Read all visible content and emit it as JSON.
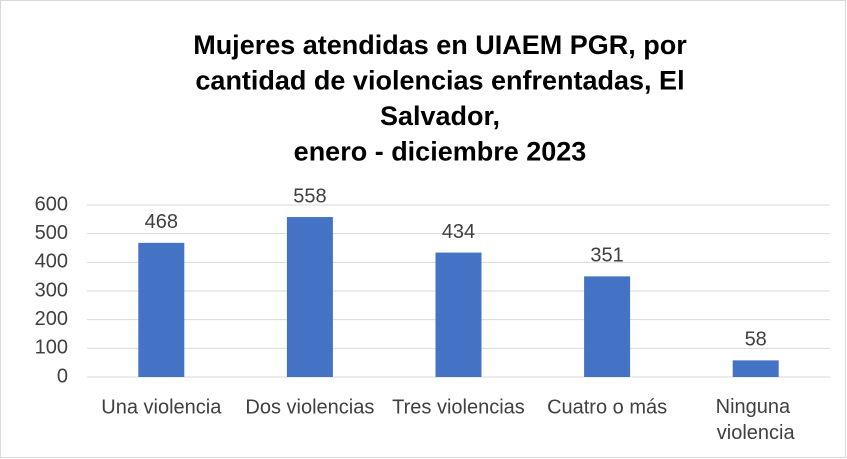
{
  "chart_data": {
    "type": "bar",
    "title": [
      "Mujeres atendidas en UIAEM PGR, por",
      "cantidad de violencias enfrentadas, El",
      "Salvador,",
      "enero - diciembre 2023"
    ],
    "categories": [
      "Una violencia",
      "Dos violencias",
      "Tres violencias",
      "Cuatro o más",
      "Ninguna violencia"
    ],
    "values": [
      468,
      558,
      434,
      351,
      58
    ],
    "color": "#4472c4",
    "ylim": [
      0,
      600
    ],
    "yticks": [
      0,
      100,
      200,
      300,
      400,
      500,
      600
    ],
    "grid": true
  }
}
